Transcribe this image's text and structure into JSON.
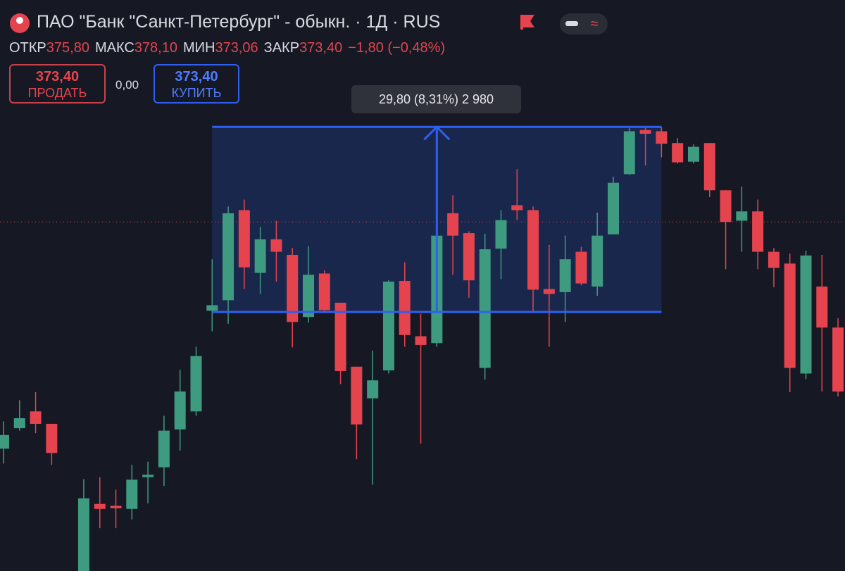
{
  "header": {
    "title": "ПАО \"Банк \"Санкт-Петербург\" - обыкн. · 1Д · RUS",
    "stats": [
      {
        "label": "ОТКР",
        "value": "375,80"
      },
      {
        "label": "МАКС",
        "value": "378,10"
      },
      {
        "label": "МИН",
        "value": "373,06"
      },
      {
        "label": "ЗАКР",
        "value": "373,40"
      }
    ],
    "change": "−1,80 (−0,48%)"
  },
  "trade": {
    "sell_price": "373,40",
    "sell_label": "ПРОДАТЬ",
    "spread": "0,00",
    "buy_price": "373,40",
    "buy_label": "КУПИТЬ"
  },
  "chart_data": {
    "type": "candlestick",
    "categories": [
      null,
      null,
      null,
      null,
      null,
      null,
      null,
      null,
      null,
      null,
      null,
      null,
      null,
      null,
      null,
      null,
      null,
      null,
      null,
      null,
      null,
      null,
      null,
      null,
      null,
      null,
      null,
      null,
      null,
      null,
      null,
      null,
      null,
      null,
      null,
      null,
      null,
      null,
      null,
      null,
      null,
      null,
      null,
      null,
      null,
      null,
      null,
      null,
      null,
      null,
      null,
      null,
      null
    ],
    "open": [
      336.9,
      340.2,
      342.9,
      340.9,
      null,
      317.2,
      328.0,
      327.7,
      327.2,
      332.3,
      333.9,
      340.0,
      342.9,
      359.1,
      360.8,
      375.3,
      365.2,
      370.6,
      368.1,
      358.1,
      365.1,
      360.4,
      350.1,
      345.0,
      349.5,
      363.9,
      355.0,
      353.9,
      374.8,
      371.6,
      349.9,
      369.1,
      376.1,
      375.3,
      362.6,
      362.1,
      368.6,
      363.0,
      371.4,
      381.1,
      388.2,
      388.0,
      386.1,
      383.1,
      386.1,
      378.5,
      373.6,
      375.1,
      368.6,
      366.7,
      349.0,
      363.0,
      356.4
    ],
    "high": [
      341.3,
      344.7,
      346.0,
      340.9,
      null,
      332.0,
      332.3,
      330.3,
      334.3,
      334.8,
      342.2,
      349.6,
      353.3,
      367.4,
      375.9,
      377.0,
      372.6,
      373.6,
      369.2,
      369.5,
      365.6,
      360.4,
      350.1,
      352.7,
      364.0,
      366.9,
      358.6,
      375.3,
      377.7,
      371.9,
      371.5,
      375.3,
      381.9,
      375.9,
      369.7,
      371.2,
      369.4,
      374.9,
      380.7,
      388.5,
      388.7,
      388.7,
      386.9,
      385.9,
      386.1,
      378.5,
      379.1,
      377.0,
      369.2,
      368.3,
      368.8,
      368.1,
      357.9
    ],
    "low": [
      334.5,
      339.8,
      339.4,
      334.3,
      null,
      316.0,
      324.1,
      324.1,
      325.5,
      328.1,
      330.9,
      336.6,
      342.2,
      355.8,
      357.0,
      362.6,
      361.8,
      363.8,
      353.2,
      357.2,
      358.9,
      347.3,
      335.2,
      331.1,
      349.0,
      353.3,
      337.7,
      353.3,
      364.9,
      361.2,
      348.0,
      364.2,
      373.7,
      358.9,
      353.3,
      357.3,
      363.2,
      361.5,
      371.4,
      381.0,
      382.5,
      383.8,
      382.8,
      382.8,
      377.4,
      365.8,
      368.6,
      365.8,
      362.9,
      346.0,
      348.1,
      346.1,
      345.3
    ],
    "close": [
      339.1,
      341.8,
      340.9,
      336.2,
      null,
      328.9,
      327.2,
      327.3,
      331.9,
      332.7,
      339.8,
      346.1,
      351.8,
      360.0,
      374.8,
      366.1,
      370.6,
      368.6,
      357.3,
      364.9,
      359.2,
      349.4,
      340.8,
      347.9,
      363.8,
      355.2,
      353.6,
      371.2,
      371.2,
      364.0,
      369.0,
      373.7,
      375.3,
      362.5,
      361.8,
      367.4,
      363.5,
      371.2,
      379.7,
      388.0,
      387.6,
      386.0,
      383.0,
      385.5,
      378.5,
      373.4,
      375.1,
      368.6,
      366.0,
      349.9,
      368.0,
      356.4,
      346.1
    ],
    "up_color": "#3e9b80",
    "down_color": "#e5444e",
    "ylim": [
      317.2,
      391.0
    ],
    "measure": {
      "label": "29,80 (8,31%) 2 980",
      "from": 358.9,
      "to": 388.7,
      "color": "#2f5ff0"
    },
    "last_price": 373.4
  }
}
